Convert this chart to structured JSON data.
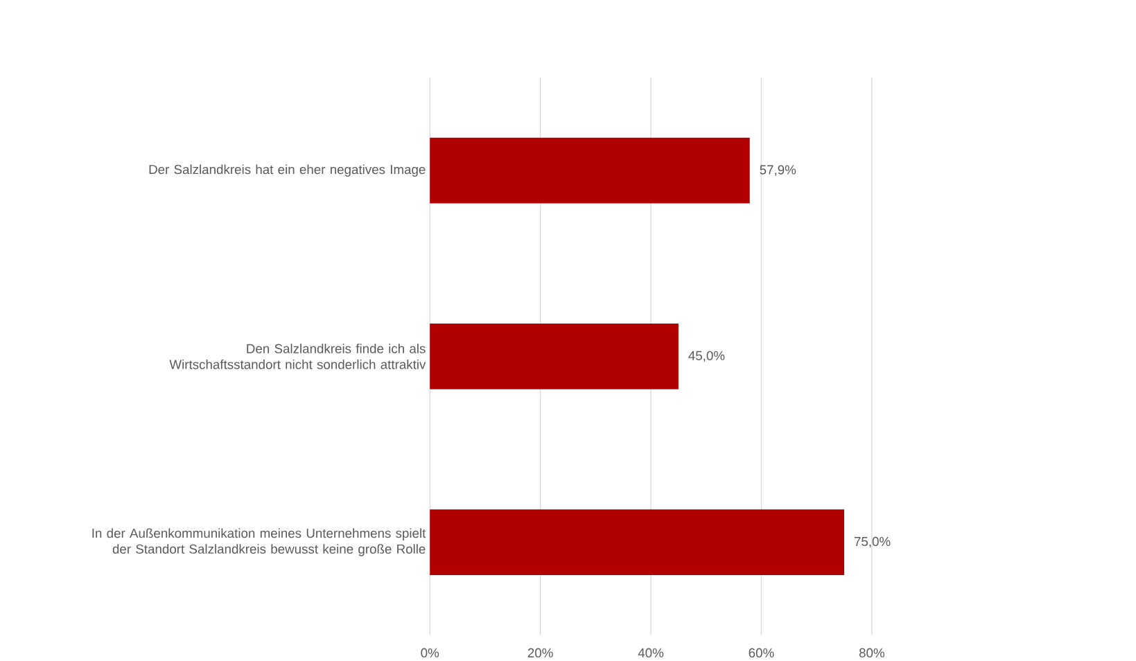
{
  "chart_data": {
    "type": "bar",
    "orientation": "horizontal",
    "color": "#b00000",
    "grid": "x",
    "categories": [
      "Der Salzlandkreis hat ein eher negatives Image",
      "Den Salzlandkreis finde ich als Wirtschaftsstandort nicht sonderlich attraktiv",
      "In der Außenkommunikation meines Unternehmens spielt der Standort Salzlandkreis bewusst keine große Rolle"
    ],
    "values": [
      57.9,
      45.0,
      75.0
    ],
    "value_labels": [
      "57,9%",
      "45,0%",
      "75,0%"
    ],
    "xlim": [
      0,
      80
    ],
    "xticks": [
      {
        "value": 0,
        "label": "0%"
      },
      {
        "value": 20,
        "label": "20%"
      },
      {
        "value": 40,
        "label": "40%"
      },
      {
        "value": 60,
        "label": "60%"
      },
      {
        "value": 80,
        "label": "80%"
      }
    ]
  }
}
